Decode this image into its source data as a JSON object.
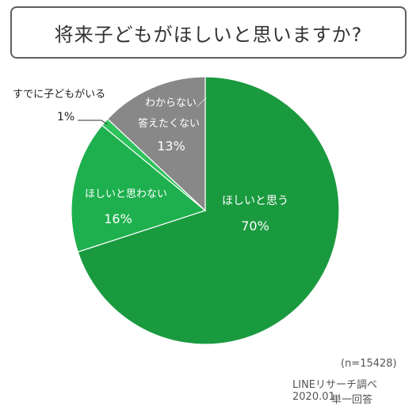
{
  "chart_data": {
    "type": "pie",
    "title": "将来子どもがほしいと思いますか?",
    "slices": [
      {
        "label": "ほしいと思う",
        "value": 70,
        "display": "70%",
        "color": "#1a9a3f"
      },
      {
        "label": "ほしいと思わない",
        "value": 16,
        "display": "16%",
        "color": "#1eb04e"
      },
      {
        "label": "すでに子どもがいる",
        "value": 1,
        "display": "1%",
        "color": "#2ec25c"
      },
      {
        "label": "わからない／答えたくない",
        "value": 13,
        "display": "13%",
        "color": "#888888"
      }
    ],
    "sample_size": "(n=15428)",
    "source": "LINEリサーチ調べ 2020.01",
    "note": "単一回答"
  }
}
